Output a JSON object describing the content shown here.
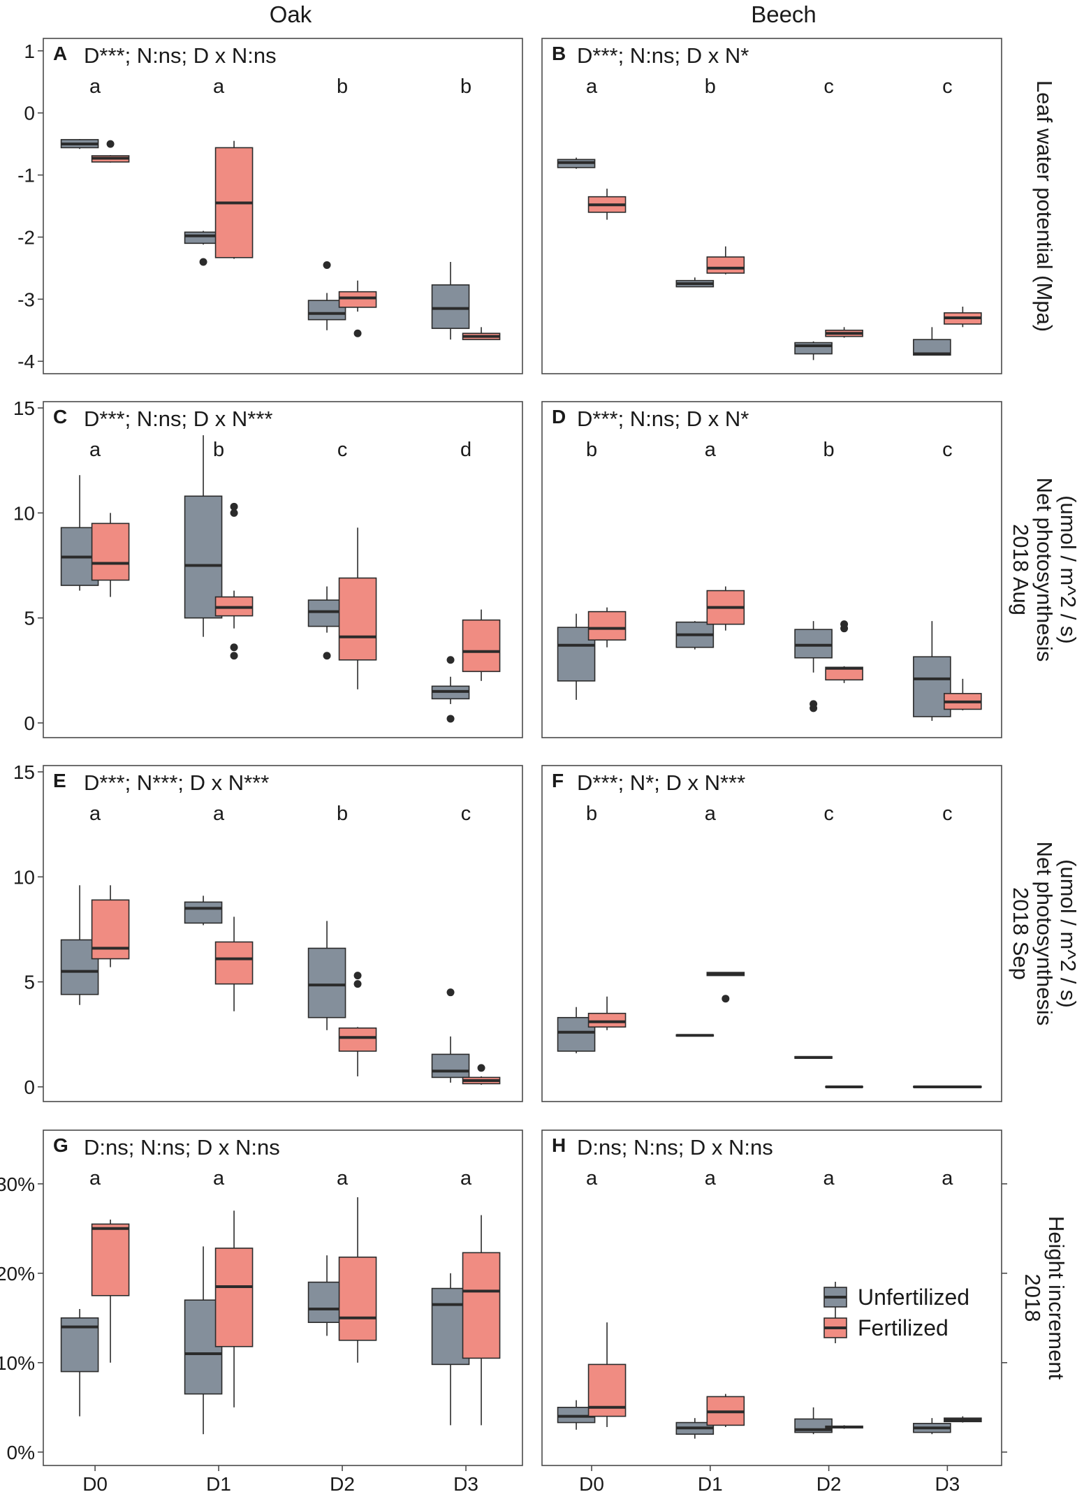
{
  "figure": {
    "columns": [
      "Oak",
      "Beech"
    ],
    "x_categories": [
      "D0",
      "D1",
      "D2",
      "D3"
    ],
    "legend": [
      {
        "label": "Unfertilized",
        "color": "#848f9b"
      },
      {
        "label": "Fertilized",
        "color": "#f08c82"
      }
    ],
    "colors": {
      "unfertilized": "#848f9b",
      "fertilized": "#f08c82",
      "line": "#2b2b2b",
      "frame": "#4a4a4a"
    }
  },
  "rows": [
    {
      "ylabel_lines": [
        "Leaf water potential (Mpa)"
      ],
      "ylim": [
        -4.2,
        1.2
      ],
      "ticks": [
        1,
        0,
        -1,
        -2,
        -3,
        -4
      ],
      "tick_labels": [
        "1",
        "0",
        "-1",
        "-2",
        "-3",
        "-4"
      ],
      "left_ticks": true,
      "right_ticks": false
    },
    {
      "ylabel_lines": [
        "2018 Aug",
        "Net photosynthesis",
        "(umol / m^2 / s)"
      ],
      "ylim": [
        -0.7,
        15.3
      ],
      "ticks": [
        15,
        10,
        5,
        0
      ],
      "tick_labels": [
        "15",
        "10",
        "5",
        "0"
      ],
      "left_ticks": true,
      "right_ticks": false
    },
    {
      "ylabel_lines": [
        "2018 Sep",
        "Net photosynthesis",
        "(umol / m^2 / s)"
      ],
      "ylim": [
        -0.7,
        15.3
      ],
      "ticks": [
        15,
        10,
        5,
        0
      ],
      "tick_labels": [
        "15",
        "10",
        "5",
        "0"
      ],
      "left_ticks": true,
      "right_ticks": false
    },
    {
      "ylabel_lines": [
        "2018",
        "Height increment"
      ],
      "ylim": [
        -0.015,
        0.36
      ],
      "ticks": [
        0.3,
        0.2,
        0.1,
        0.0
      ],
      "tick_labels": [
        "30%",
        "20%",
        "10%",
        "0%"
      ],
      "left_ticks": true,
      "right_ticks": true
    }
  ],
  "chart_data": [
    {
      "type": "box",
      "panel": "A",
      "species": "Oak",
      "title": "D***; N:ns; D x N:ns",
      "ylabel": "Leaf water potential (Mpa)",
      "letters": [
        "a",
        "a",
        "b",
        "b"
      ],
      "categories": [
        "D0",
        "D1",
        "D2",
        "D3"
      ],
      "series": [
        {
          "name": "Unfertilized",
          "boxes": [
            {
              "low": -0.58,
              "q1": -0.56,
              "median": -0.5,
              "q3": -0.43,
              "high": -0.42,
              "outliers": []
            },
            {
              "low": -2.12,
              "q1": -2.1,
              "median": -1.98,
              "q3": -1.92,
              "high": -1.9,
              "outliers": [
                -2.4
              ]
            },
            {
              "low": -3.5,
              "q1": -3.33,
              "median": -3.23,
              "q3": -3.02,
              "high": -2.9,
              "outliers": [
                -2.45
              ]
            },
            {
              "low": -3.65,
              "q1": -3.47,
              "median": -3.15,
              "q3": -2.77,
              "high": -2.4,
              "outliers": []
            }
          ]
        },
        {
          "name": "Fertilized",
          "boxes": [
            {
              "low": -0.8,
              "q1": -0.79,
              "median": -0.73,
              "q3": -0.69,
              "high": -0.68,
              "outliers": [
                -0.5
              ]
            },
            {
              "low": -2.35,
              "q1": -2.33,
              "median": -1.45,
              "q3": -0.56,
              "high": -0.45,
              "outliers": []
            },
            {
              "low": -3.2,
              "q1": -3.13,
              "median": -2.98,
              "q3": -2.88,
              "high": -2.7,
              "outliers": [
                -3.55
              ]
            },
            {
              "low": -3.65,
              "q1": -3.65,
              "median": -3.6,
              "q3": -3.55,
              "high": -3.45,
              "outliers": []
            }
          ]
        }
      ]
    },
    {
      "type": "box",
      "panel": "B",
      "species": "Beech",
      "title": "D***; N:ns; D x N*",
      "ylabel": "Leaf water potential (Mpa)",
      "letters": [
        "a",
        "b",
        "c",
        "c"
      ],
      "categories": [
        "D0",
        "D1",
        "D2",
        "D3"
      ],
      "series": [
        {
          "name": "Unfertilized",
          "boxes": [
            {
              "low": -0.9,
              "q1": -0.88,
              "median": -0.8,
              "q3": -0.75,
              "high": -0.72,
              "outliers": []
            },
            {
              "low": -2.8,
              "q1": -2.8,
              "median": -2.75,
              "q3": -2.7,
              "high": -2.65,
              "outliers": []
            },
            {
              "low": -3.98,
              "q1": -3.88,
              "median": -3.75,
              "q3": -3.7,
              "high": -3.68,
              "outliers": []
            },
            {
              "low": -3.9,
              "q1": -3.9,
              "median": -3.88,
              "q3": -3.65,
              "high": -3.45,
              "outliers": []
            }
          ]
        },
        {
          "name": "Fertilized",
          "boxes": [
            {
              "low": -1.72,
              "q1": -1.6,
              "median": -1.48,
              "q3": -1.35,
              "high": -1.22,
              "outliers": []
            },
            {
              "low": -2.6,
              "q1": -2.58,
              "median": -2.5,
              "q3": -2.32,
              "high": -2.15,
              "outliers": []
            },
            {
              "low": -3.62,
              "q1": -3.6,
              "median": -3.55,
              "q3": -3.5,
              "high": -3.45,
              "outliers": []
            },
            {
              "low": -3.45,
              "q1": -3.4,
              "median": -3.3,
              "q3": -3.22,
              "high": -3.12,
              "outliers": []
            }
          ]
        }
      ]
    },
    {
      "type": "box",
      "panel": "C",
      "species": "Oak",
      "title": "D***; N:ns; D x N***",
      "ylabel": "2018 Aug Net photosynthesis (umol / m^2 / s)",
      "letters": [
        "a",
        "b",
        "c",
        "d"
      ],
      "categories": [
        "D0",
        "D1",
        "D2",
        "D3"
      ],
      "series": [
        {
          "name": "Unfertilized",
          "boxes": [
            {
              "low": 6.3,
              "q1": 6.55,
              "median": 7.9,
              "q3": 9.3,
              "high": 11.8,
              "outliers": []
            },
            {
              "low": 4.1,
              "q1": 5.0,
              "median": 7.5,
              "q3": 10.8,
              "high": 13.7,
              "outliers": []
            },
            {
              "low": 4.3,
              "q1": 4.6,
              "median": 5.3,
              "q3": 5.85,
              "high": 6.5,
              "outliers": [
                3.2
              ]
            },
            {
              "low": 0.9,
              "q1": 1.15,
              "median": 1.5,
              "q3": 1.75,
              "high": 2.2,
              "outliers": [
                3.0,
                0.2
              ]
            }
          ]
        },
        {
          "name": "Fertilized",
          "boxes": [
            {
              "low": 6.0,
              "q1": 6.8,
              "median": 7.6,
              "q3": 9.5,
              "high": 10.0,
              "outliers": []
            },
            {
              "low": 4.5,
              "q1": 5.1,
              "median": 5.5,
              "q3": 6.0,
              "high": 6.3,
              "outliers": [
                10.3,
                10.0,
                3.6,
                3.2
              ]
            },
            {
              "low": 1.6,
              "q1": 3.0,
              "median": 4.1,
              "q3": 6.9,
              "high": 9.3,
              "outliers": []
            },
            {
              "low": 2.0,
              "q1": 2.45,
              "median": 3.4,
              "q3": 4.9,
              "high": 5.4,
              "outliers": []
            }
          ]
        }
      ]
    },
    {
      "type": "box",
      "panel": "D",
      "species": "Beech",
      "title": "D***; N:ns; D x N*",
      "ylabel": "2018 Aug Net photosynthesis (umol / m^2 / s)",
      "letters": [
        "b",
        "a",
        "b",
        "c"
      ],
      "categories": [
        "D0",
        "D1",
        "D2",
        "D3"
      ],
      "series": [
        {
          "name": "Unfertilized",
          "boxes": [
            {
              "low": 1.1,
              "q1": 2.0,
              "median": 3.7,
              "q3": 4.55,
              "high": 5.2,
              "outliers": []
            },
            {
              "low": 3.5,
              "q1": 3.6,
              "median": 4.2,
              "q3": 4.8,
              "high": 4.85,
              "outliers": []
            },
            {
              "low": 2.4,
              "q1": 3.1,
              "median": 3.7,
              "q3": 4.45,
              "high": 4.85,
              "outliers": [
                0.9,
                0.7
              ]
            },
            {
              "low": 0.1,
              "q1": 0.3,
              "median": 2.1,
              "q3": 3.15,
              "high": 4.85,
              "outliers": []
            }
          ]
        },
        {
          "name": "Fertilized",
          "boxes": [
            {
              "low": 3.6,
              "q1": 3.95,
              "median": 4.5,
              "q3": 5.3,
              "high": 5.5,
              "outliers": []
            },
            {
              "low": 4.4,
              "q1": 4.7,
              "median": 5.5,
              "q3": 6.3,
              "high": 6.5,
              "outliers": []
            },
            {
              "low": 1.9,
              "q1": 2.05,
              "median": 2.6,
              "q3": 2.65,
              "high": 2.7,
              "outliers": [
                4.7,
                4.5
              ]
            },
            {
              "low": 0.6,
              "q1": 0.65,
              "median": 1.0,
              "q3": 1.4,
              "high": 2.1,
              "outliers": []
            }
          ]
        }
      ]
    },
    {
      "type": "box",
      "panel": "E",
      "species": "Oak",
      "title": "D***; N***; D x N***",
      "ylabel": "2018 Sep Net photosynthesis (umol / m^2 / s)",
      "letters": [
        "a",
        "a",
        "b",
        "c"
      ],
      "categories": [
        "D0",
        "D1",
        "D2",
        "D3"
      ],
      "series": [
        {
          "name": "Unfertilized",
          "boxes": [
            {
              "low": 3.9,
              "q1": 4.4,
              "median": 5.5,
              "q3": 7.0,
              "high": 9.6,
              "outliers": []
            },
            {
              "low": 7.7,
              "q1": 7.8,
              "median": 8.5,
              "q3": 8.8,
              "high": 9.1,
              "outliers": []
            },
            {
              "low": 2.7,
              "q1": 3.3,
              "median": 4.85,
              "q3": 6.6,
              "high": 7.9,
              "outliers": []
            },
            {
              "low": 0.2,
              "q1": 0.45,
              "median": 0.75,
              "q3": 1.55,
              "high": 2.4,
              "outliers": [
                4.5
              ]
            }
          ]
        },
        {
          "name": "Fertilized",
          "boxes": [
            {
              "low": 5.7,
              "q1": 6.1,
              "median": 6.6,
              "q3": 8.9,
              "high": 9.6,
              "outliers": []
            },
            {
              "low": 3.6,
              "q1": 4.9,
              "median": 6.1,
              "q3": 6.9,
              "high": 8.1,
              "outliers": []
            },
            {
              "low": 0.5,
              "q1": 1.7,
              "median": 2.35,
              "q3": 2.8,
              "high": 2.85,
              "outliers": [
                5.3,
                4.9
              ]
            },
            {
              "low": 0.1,
              "q1": 0.15,
              "median": 0.3,
              "q3": 0.45,
              "high": 0.5,
              "outliers": [
                0.9
              ]
            }
          ]
        }
      ]
    },
    {
      "type": "box",
      "panel": "F",
      "species": "Beech",
      "title": "D***; N*; D x N***",
      "ylabel": "2018 Sep Net photosynthesis (umol / m^2 / s)",
      "letters": [
        "b",
        "a",
        "c",
        "c"
      ],
      "categories": [
        "D0",
        "D1",
        "D2",
        "D3"
      ],
      "series": [
        {
          "name": "Unfertilized",
          "boxes": [
            {
              "low": 1.6,
              "q1": 1.7,
              "median": 2.6,
              "q3": 3.3,
              "high": 3.8,
              "outliers": []
            },
            {
              "low": 2.42,
              "q1": 2.42,
              "median": 2.45,
              "q3": 2.48,
              "high": 2.48,
              "outliers": []
            },
            {
              "low": 1.36,
              "q1": 1.36,
              "median": 1.4,
              "q3": 1.44,
              "high": 1.44,
              "outliers": []
            },
            {
              "low": -0.02,
              "q1": -0.02,
              "median": 0.0,
              "q3": 0.02,
              "high": 0.02,
              "outliers": []
            }
          ]
        },
        {
          "name": "Fertilized",
          "boxes": [
            {
              "low": 2.7,
              "q1": 2.85,
              "median": 3.1,
              "q3": 3.5,
              "high": 4.3,
              "outliers": []
            },
            {
              "low": 5.3,
              "q1": 5.3,
              "median": 5.38,
              "q3": 5.45,
              "high": 5.45,
              "outliers": [
                4.2
              ]
            },
            {
              "low": -0.02,
              "q1": -0.02,
              "median": 0.0,
              "q3": 0.02,
              "high": 0.02,
              "outliers": []
            },
            {
              "low": -0.02,
              "q1": -0.02,
              "median": 0.0,
              "q3": 0.02,
              "high": 0.02,
              "outliers": []
            }
          ]
        }
      ]
    },
    {
      "type": "box",
      "panel": "G",
      "species": "Oak",
      "title": "D:ns; N:ns; D x N:ns",
      "ylabel": "2018 Height increment",
      "letters": [
        "a",
        "a",
        "a",
        "a"
      ],
      "categories": [
        "D0",
        "D1",
        "D2",
        "D3"
      ],
      "series": [
        {
          "name": "Unfertilized",
          "boxes": [
            {
              "low": 0.04,
              "q1": 0.09,
              "median": 0.14,
              "q3": 0.15,
              "high": 0.16,
              "outliers": []
            },
            {
              "low": 0.02,
              "q1": 0.065,
              "median": 0.11,
              "q3": 0.17,
              "high": 0.23,
              "outliers": []
            },
            {
              "low": 0.13,
              "q1": 0.145,
              "median": 0.16,
              "q3": 0.19,
              "high": 0.22,
              "outliers": []
            },
            {
              "low": 0.03,
              "q1": 0.098,
              "median": 0.165,
              "q3": 0.183,
              "high": 0.2,
              "outliers": []
            }
          ]
        },
        {
          "name": "Fertilized",
          "boxes": [
            {
              "low": 0.1,
              "q1": 0.175,
              "median": 0.25,
              "q3": 0.255,
              "high": 0.26,
              "outliers": []
            },
            {
              "low": 0.05,
              "q1": 0.118,
              "median": 0.185,
              "q3": 0.228,
              "high": 0.27,
              "outliers": []
            },
            {
              "low": 0.1,
              "q1": 0.125,
              "median": 0.15,
              "q3": 0.218,
              "high": 0.285,
              "outliers": []
            },
            {
              "low": 0.03,
              "q1": 0.105,
              "median": 0.18,
              "q3": 0.223,
              "high": 0.265,
              "outliers": []
            }
          ]
        }
      ]
    },
    {
      "type": "box",
      "panel": "H",
      "species": "Beech",
      "title": "D:ns; N:ns; D x N:ns",
      "ylabel": "2018 Height increment",
      "letters": [
        "a",
        "a",
        "a",
        "a"
      ],
      "categories": [
        "D0",
        "D1",
        "D2",
        "D3"
      ],
      "series": [
        {
          "name": "Unfertilized",
          "boxes": [
            {
              "low": 0.025,
              "q1": 0.033,
              "median": 0.04,
              "q3": 0.05,
              "high": 0.058,
              "outliers": []
            },
            {
              "low": 0.015,
              "q1": 0.02,
              "median": 0.027,
              "q3": 0.033,
              "high": 0.038,
              "outliers": []
            },
            {
              "low": 0.02,
              "q1": 0.022,
              "median": 0.025,
              "q3": 0.037,
              "high": 0.05,
              "outliers": []
            },
            {
              "low": 0.02,
              "q1": 0.022,
              "median": 0.027,
              "q3": 0.032,
              "high": 0.038,
              "outliers": []
            }
          ]
        },
        {
          "name": "Fertilized",
          "boxes": [
            {
              "low": 0.028,
              "q1": 0.04,
              "median": 0.05,
              "q3": 0.098,
              "high": 0.145,
              "outliers": []
            },
            {
              "low": 0.028,
              "q1": 0.03,
              "median": 0.045,
              "q3": 0.062,
              "high": 0.065,
              "outliers": []
            },
            {
              "low": 0.026,
              "q1": 0.027,
              "median": 0.028,
              "q3": 0.029,
              "high": 0.03,
              "outliers": []
            },
            {
              "low": 0.033,
              "q1": 0.034,
              "median": 0.036,
              "q3": 0.038,
              "high": 0.04,
              "outliers": []
            }
          ]
        }
      ]
    }
  ]
}
